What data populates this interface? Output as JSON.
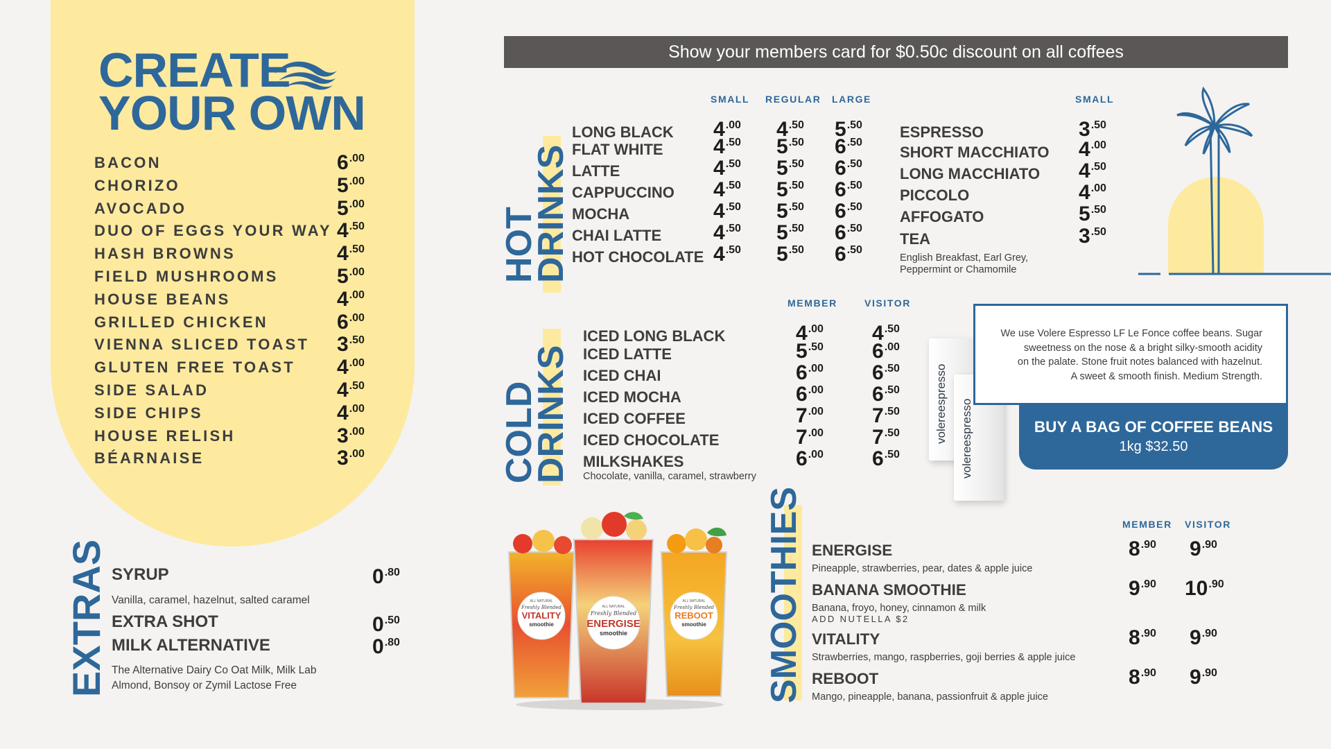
{
  "create_your_own": {
    "title_line1": "CREATE",
    "title_line2": "YOUR OWN",
    "items": [
      {
        "name": "BACON",
        "whole": "6",
        "cents": ".00"
      },
      {
        "name": "CHORIZO",
        "whole": "5",
        "cents": ".00"
      },
      {
        "name": "AVOCADO",
        "whole": "5",
        "cents": ".00"
      },
      {
        "name": "DUO OF EGGS YOUR WAY",
        "whole": "4",
        "cents": ".50"
      },
      {
        "name": "HASH BROWNS",
        "whole": "4",
        "cents": ".50"
      },
      {
        "name": "FIELD MUSHROOMS",
        "whole": "5",
        "cents": ".00"
      },
      {
        "name": "HOUSE BEANS",
        "whole": "4",
        "cents": ".00"
      },
      {
        "name": "GRILLED CHICKEN",
        "whole": "6",
        "cents": ".00"
      },
      {
        "name": "VIENNA SLICED TOAST",
        "whole": "3",
        "cents": ".50"
      },
      {
        "name": "GLUTEN FREE TOAST",
        "whole": "4",
        "cents": ".00"
      },
      {
        "name": "SIDE SALAD",
        "whole": "4",
        "cents": ".50"
      },
      {
        "name": "SIDE CHIPS",
        "whole": "4",
        "cents": ".00"
      },
      {
        "name": "HOUSE RELISH",
        "whole": "3",
        "cents": ".00"
      },
      {
        "name": "BÉARNAISE",
        "whole": "3",
        "cents": ".00"
      }
    ]
  },
  "extras": {
    "label": "EXTRAS",
    "syrup": {
      "name": "SYRUP",
      "whole": "0",
      "cents": ".80",
      "note": "Vanilla, caramel, hazelnut, salted caramel"
    },
    "extra_shot": {
      "name": "EXTRA SHOT",
      "whole": "0",
      "cents": ".50"
    },
    "milk_alt": {
      "name": "MILK ALTERNATIVE",
      "whole": "0",
      "cents": ".80",
      "note_line1": "The Alternative Dairy Co Oat Milk, Milk Lab",
      "note_line2": "Almond, Bonsoy or Zymil Lactose Free"
    }
  },
  "banner": {
    "text": "Show your members card for $0.50c discount on all coffees"
  },
  "hot_drinks": {
    "label_line1": "HOT",
    "label_line2": "DRINKS",
    "headers": {
      "small": "SMALL",
      "regular": "REGULAR",
      "large": "LARGE",
      "small2": "SMALL"
    },
    "items": [
      {
        "name": "LONG BLACK",
        "s": [
          "4",
          ".00"
        ],
        "r": [
          "4",
          ".50"
        ],
        "l": [
          "5",
          ".50"
        ]
      },
      {
        "name": "FLAT WHITE",
        "s": [
          "4",
          ".50"
        ],
        "r": [
          "5",
          ".50"
        ],
        "l": [
          "6",
          ".50"
        ]
      },
      {
        "name": "LATTE",
        "s": [
          "4",
          ".50"
        ],
        "r": [
          "5",
          ".50"
        ],
        "l": [
          "6",
          ".50"
        ]
      },
      {
        "name": "CAPPUCCINO",
        "s": [
          "4",
          ".50"
        ],
        "r": [
          "5",
          ".50"
        ],
        "l": [
          "6",
          ".50"
        ]
      },
      {
        "name": "MOCHA",
        "s": [
          "4",
          ".50"
        ],
        "r": [
          "5",
          ".50"
        ],
        "l": [
          "6",
          ".50"
        ]
      },
      {
        "name": "CHAI LATTE",
        "s": [
          "4",
          ".50"
        ],
        "r": [
          "5",
          ".50"
        ],
        "l": [
          "6",
          ".50"
        ]
      },
      {
        "name": "HOT CHOCOLATE",
        "s": [
          "4",
          ".50"
        ],
        "r": [
          "5",
          ".50"
        ],
        "l": [
          "6",
          ".50"
        ]
      }
    ],
    "items2": [
      {
        "name": "ESPRESSO",
        "s": [
          "3",
          ".50"
        ]
      },
      {
        "name": "SHORT MACCHIATO",
        "s": [
          "4",
          ".00"
        ]
      },
      {
        "name": "LONG MACCHIATO",
        "s": [
          "4",
          ".50"
        ]
      },
      {
        "name": "PICCOLO",
        "s": [
          "4",
          ".00"
        ]
      },
      {
        "name": "AFFOGATO",
        "s": [
          "5",
          ".50"
        ]
      },
      {
        "name": "TEA",
        "s": [
          "3",
          ".50"
        ]
      }
    ],
    "tea_note_line1": "English Breakfast, Earl Grey,",
    "tea_note_line2": "Peppermint or Chamomile"
  },
  "cold_drinks": {
    "label_line1": "COLD",
    "label_line2": "DRINKS",
    "headers": {
      "member": "MEMBER",
      "visitor": "VISITOR"
    },
    "items": [
      {
        "name": "ICED LONG BLACK",
        "m": [
          "4",
          ".00"
        ],
        "v": [
          "4",
          ".50"
        ]
      },
      {
        "name": "ICED LATTE",
        "m": [
          "5",
          ".50"
        ],
        "v": [
          "6",
          ".00"
        ]
      },
      {
        "name": "ICED CHAI",
        "m": [
          "6",
          ".00"
        ],
        "v": [
          "6",
          ".50"
        ]
      },
      {
        "name": "ICED MOCHA",
        "m": [
          "6",
          ".00"
        ],
        "v": [
          "6",
          ".50"
        ]
      },
      {
        "name": "ICED COFFEE",
        "m": [
          "7",
          ".00"
        ],
        "v": [
          "7",
          ".50"
        ]
      },
      {
        "name": "ICED CHOCOLATE",
        "m": [
          "7",
          ".00"
        ],
        "v": [
          "7",
          ".50"
        ]
      },
      {
        "name": "MILKSHAKES",
        "m": [
          "6",
          ".00"
        ],
        "v": [
          "6",
          ".50"
        ]
      }
    ],
    "milkshake_note": "Chocolate, vanilla, caramel, strawberry"
  },
  "beans": {
    "text_line1": "We use Volere Espresso LF Le Fonce coffee beans. Sugar",
    "text_line2": "sweetness on the nose & a bright silky-smooth acidity",
    "text_line3": "on the palate. Stone fruit notes balanced with hazelnut.",
    "text_line4": "A sweet & smooth finish. Medium Strength.",
    "button_line1": "BUY A BAG OF COFFEE BEANS",
    "button_line2": "1kg $32.50",
    "bag_brand": "volereespresso"
  },
  "smoothies": {
    "label": "SMOOTHIES",
    "headers": {
      "member": "MEMBER",
      "visitor": "VISITOR"
    },
    "items": [
      {
        "name": "ENERGISE",
        "desc": "Pineapple, strawberries, pear, dates & apple juice",
        "m": [
          "8",
          ".90"
        ],
        "v": [
          "9",
          ".90"
        ]
      },
      {
        "name": "BANANA SMOOTHIE",
        "desc": "Banana, froyo, honey, cinnamon & milk",
        "m": [
          "9",
          ".90"
        ],
        "v": [
          "10",
          ".90"
        ]
      },
      {
        "name": "VITALITY",
        "desc": "Strawberries, mango, raspberries, goji berries & apple juice",
        "m": [
          "8",
          ".90"
        ],
        "v": [
          "9",
          ".90"
        ]
      },
      {
        "name": "REBOOT",
        "desc": "Mango, pineapple, banana, passionfruit & apple juice",
        "m": [
          "8",
          ".90"
        ],
        "v": [
          "9",
          ".90"
        ]
      }
    ],
    "addon": "ADD NUTELLA $2",
    "glass_labels": {
      "top": "ALL NATURAL",
      "script": "Freshly Blended",
      "vitality": "VITALITY",
      "energise": "ENERGISE",
      "reboot": "REBOOT",
      "smoothie": "smoothie"
    }
  },
  "colors": {
    "blue": "#2e679a",
    "yellow": "#fdea9f",
    "banner_gray": "#5a5756",
    "background": "#f4f3f1"
  },
  "icons": {
    "wave": "wave-icon",
    "palm": "palm-tree-icon"
  }
}
